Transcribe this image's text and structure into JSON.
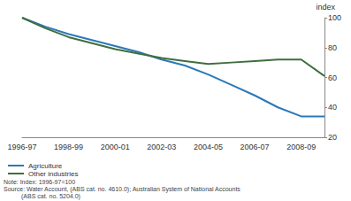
{
  "chart_data": {
    "type": "line",
    "categories": [
      "1996-97",
      null,
      "1998-99",
      null,
      "2000-01",
      null,
      "2002-03",
      null,
      "2004-05",
      null,
      "2006-07",
      null,
      "2008-09",
      null
    ],
    "series": [
      {
        "name": "Agriculture",
        "color": "#2b78b8",
        "values": [
          100,
          94,
          89,
          85,
          81,
          77,
          72,
          68,
          62,
          55,
          48,
          40,
          34,
          34
        ]
      },
      {
        "name": "Other industries",
        "color": "#3f6e3f",
        "values": [
          100,
          93,
          87,
          83,
          79,
          76,
          73,
          71,
          69,
          70,
          71,
          72,
          72,
          61
        ]
      }
    ],
    "y_label": "index",
    "ylim": [
      20,
      100
    ],
    "yticks": [
      20,
      40,
      60,
      80,
      100
    ],
    "grid": false,
    "legend": "bottom-left",
    "annotations": [
      "Note: Index: 1996-97=100",
      "Source: Water Account, (ABS cat. no. 4610.0); Australian System of National Accounts",
      "(ABS cat. no. 5204.0)"
    ]
  }
}
